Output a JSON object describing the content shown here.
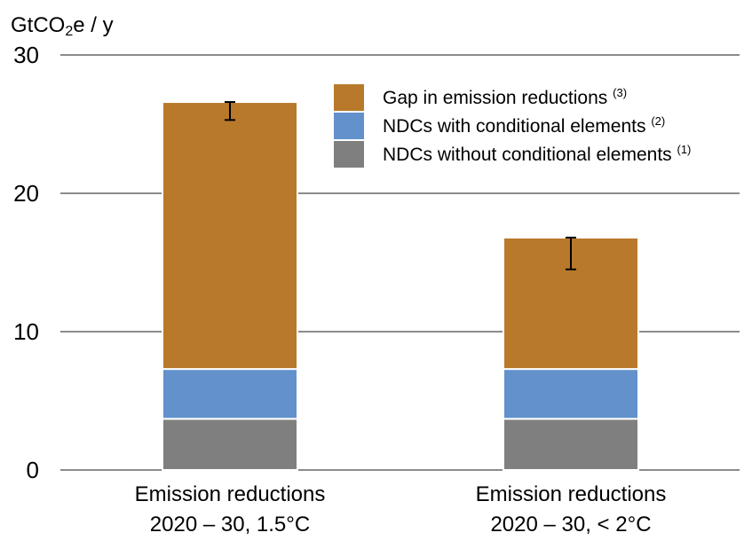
{
  "chart_data": {
    "type": "bar",
    "stacked": true,
    "ylabel": {
      "prefix": "GtCO",
      "sub": "2",
      "suffix": "e / y"
    },
    "ylim": [
      0,
      30
    ],
    "yticks": [
      0,
      10,
      20,
      30
    ],
    "grid": true,
    "categories": [
      {
        "line1": "Emission reductions",
        "line2": "2020 – 30, 1.5°C"
      },
      {
        "line1": "Emission reductions",
        "line2": "2020 – 30, < 2°C"
      }
    ],
    "series": [
      {
        "name": "NDCs without conditional elements",
        "note": "(1)",
        "color": "#7f7f7f",
        "values": [
          3.7,
          3.7
        ]
      },
      {
        "name": "NDCs with conditional elements",
        "note": "(2)",
        "color": "#6291cc",
        "values": [
          3.6,
          3.6
        ]
      },
      {
        "name": "Gap in emission reductions",
        "note": "(3)",
        "color": "#b8792b",
        "values": [
          19.3,
          9.5
        ]
      }
    ],
    "error_bars": [
      {
        "low": 25.3,
        "high": 26.6
      },
      {
        "low": 14.5,
        "high": 16.8
      }
    ],
    "legend_position": "top-right",
    "legend_order": [
      2,
      1,
      0
    ]
  }
}
